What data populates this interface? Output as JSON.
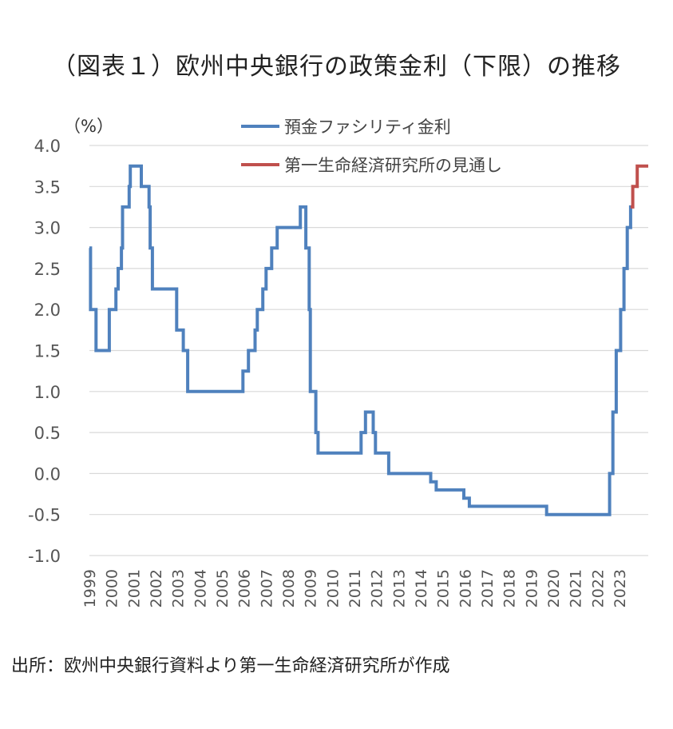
{
  "title": "（図表１）欧州中央銀行の政策金利（下限）の推移",
  "unit_label": "（%）",
  "source": "出所：欧州中央銀行資料より第一生命経済研究所が作成",
  "chart_data": {
    "type": "line",
    "ylim": [
      -1.0,
      4.0
    ],
    "yticks": [
      "4.0",
      "3.5",
      "3.0",
      "2.5",
      "2.0",
      "1.5",
      "1.0",
      "0.5",
      "0.0",
      "-0.5",
      "-1.0"
    ],
    "negative_tick_color": "#d62728",
    "xticks": [
      "1999",
      "2000",
      "2001",
      "2002",
      "2003",
      "2004",
      "2005",
      "2006",
      "2007",
      "2008",
      "2009",
      "2010",
      "2011",
      "2012",
      "2013",
      "2014",
      "2015",
      "2016",
      "2017",
      "2018",
      "2019",
      "2020",
      "2021",
      "2022",
      "2023"
    ],
    "grid": "horizontal",
    "legend_position": "top-right",
    "series": [
      {
        "name": "預金ファシリティ金利",
        "color": "#4f81bd",
        "step": true,
        "points": [
          [
            1999.0,
            2.75
          ],
          [
            1999.05,
            2.0
          ],
          [
            1999.3,
            1.5
          ],
          [
            1999.9,
            2.0
          ],
          [
            2000.2,
            2.25
          ],
          [
            2000.3,
            2.5
          ],
          [
            2000.45,
            2.75
          ],
          [
            2000.5,
            3.25
          ],
          [
            2000.8,
            3.5
          ],
          [
            2000.85,
            3.75
          ],
          [
            2001.35,
            3.5
          ],
          [
            2001.7,
            3.25
          ],
          [
            2001.75,
            2.75
          ],
          [
            2001.85,
            2.25
          ],
          [
            2002.95,
            1.75
          ],
          [
            2003.25,
            1.5
          ],
          [
            2003.45,
            1.0
          ],
          [
            2005.95,
            1.25
          ],
          [
            2006.2,
            1.5
          ],
          [
            2006.5,
            1.75
          ],
          [
            2006.6,
            2.0
          ],
          [
            2006.85,
            2.25
          ],
          [
            2007.0,
            2.5
          ],
          [
            2007.25,
            2.75
          ],
          [
            2007.5,
            3.0
          ],
          [
            2008.55,
            3.25
          ],
          [
            2008.8,
            2.75
          ],
          [
            2008.95,
            2.0
          ],
          [
            2009.0,
            1.0
          ],
          [
            2009.25,
            0.5
          ],
          [
            2009.35,
            0.25
          ],
          [
            2011.3,
            0.5
          ],
          [
            2011.5,
            0.75
          ],
          [
            2011.85,
            0.5
          ],
          [
            2011.95,
            0.25
          ],
          [
            2012.55,
            0.0
          ],
          [
            2014.45,
            -0.1
          ],
          [
            2014.7,
            -0.2
          ],
          [
            2015.95,
            -0.3
          ],
          [
            2016.2,
            -0.4
          ],
          [
            2019.7,
            -0.5
          ],
          [
            2022.55,
            0.0
          ],
          [
            2022.7,
            0.75
          ],
          [
            2022.85,
            1.5
          ],
          [
            2023.05,
            2.0
          ],
          [
            2023.2,
            2.5
          ],
          [
            2023.35,
            3.0
          ],
          [
            2023.5,
            3.25
          ]
        ],
        "end_x": 2023.55
      },
      {
        "name": "第一生命経済研究所の見通し",
        "color": "#c0504d",
        "step": true,
        "points": [
          [
            2023.5,
            3.25
          ],
          [
            2023.6,
            3.5
          ],
          [
            2023.8,
            3.75
          ]
        ],
        "end_x": 2024.3
      }
    ]
  }
}
